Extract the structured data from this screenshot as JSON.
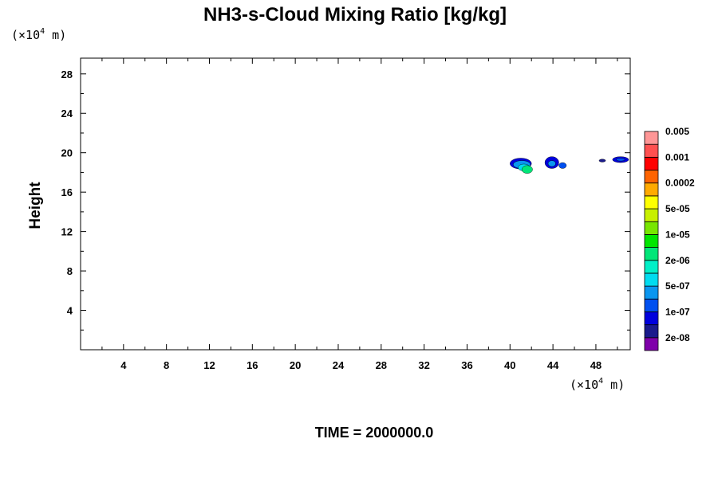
{
  "chart_data": {
    "type": "heatmap",
    "title": "NH3-s-Cloud Mixing Ratio [kg/kg]",
    "xlabel": "",
    "ylabel": "Height",
    "x_unit": {
      "prefix": "(×10",
      "exp": "4",
      "suffix": " m)"
    },
    "y_unit": {
      "prefix": "(×10",
      "exp": "4",
      "suffix": " m)"
    },
    "xlim": [
      0,
      51.2
    ],
    "ylim": [
      0,
      29.6
    ],
    "x_ticks": [
      4,
      8,
      12,
      16,
      20,
      24,
      28,
      32,
      36,
      40,
      44,
      48
    ],
    "y_ticks": [
      4,
      8,
      12,
      16,
      20,
      24,
      28
    ],
    "colorbar": {
      "colors": [
        "#7f00aa",
        "#1a1a8c",
        "#0000dd",
        "#0050f0",
        "#0a96f0",
        "#00dcf0",
        "#00f0c8",
        "#00e678",
        "#00e600",
        "#78e600",
        "#c8f000",
        "#ffff00",
        "#ffaa00",
        "#ff6400",
        "#ff0000",
        "#ff5050",
        "#ff9696"
      ],
      "labels": [
        "2e-08",
        "1e-07",
        "5e-07",
        "2e-06",
        "1e-05",
        "5e-05",
        "0.0002",
        "0.001",
        "0.005"
      ]
    },
    "cloud_patches": [
      {
        "x": 41.0,
        "y": 18.9,
        "rx": 1.0,
        "ry": 0.55,
        "level": 2
      },
      {
        "x": 41.1,
        "y": 18.8,
        "rx": 0.8,
        "ry": 0.4,
        "level": 4
      },
      {
        "x": 41.3,
        "y": 18.5,
        "rx": 0.55,
        "ry": 0.35,
        "level": 5
      },
      {
        "x": 41.6,
        "y": 18.3,
        "rx": 0.5,
        "ry": 0.4,
        "level": 7
      },
      {
        "x": 43.9,
        "y": 19.0,
        "rx": 0.65,
        "ry": 0.6,
        "level": 2
      },
      {
        "x": 43.9,
        "y": 18.9,
        "rx": 0.35,
        "ry": 0.3,
        "level": 4
      },
      {
        "x": 44.9,
        "y": 18.7,
        "rx": 0.35,
        "ry": 0.3,
        "level": 3
      },
      {
        "x": 48.6,
        "y": 19.2,
        "rx": 0.3,
        "ry": 0.15,
        "level": 1
      },
      {
        "x": 50.3,
        "y": 19.3,
        "rx": 0.75,
        "ry": 0.3,
        "level": 2
      },
      {
        "x": 50.3,
        "y": 19.3,
        "rx": 0.4,
        "ry": 0.15,
        "level": 3
      }
    ]
  },
  "time_label": "TIME = 2000000.0"
}
